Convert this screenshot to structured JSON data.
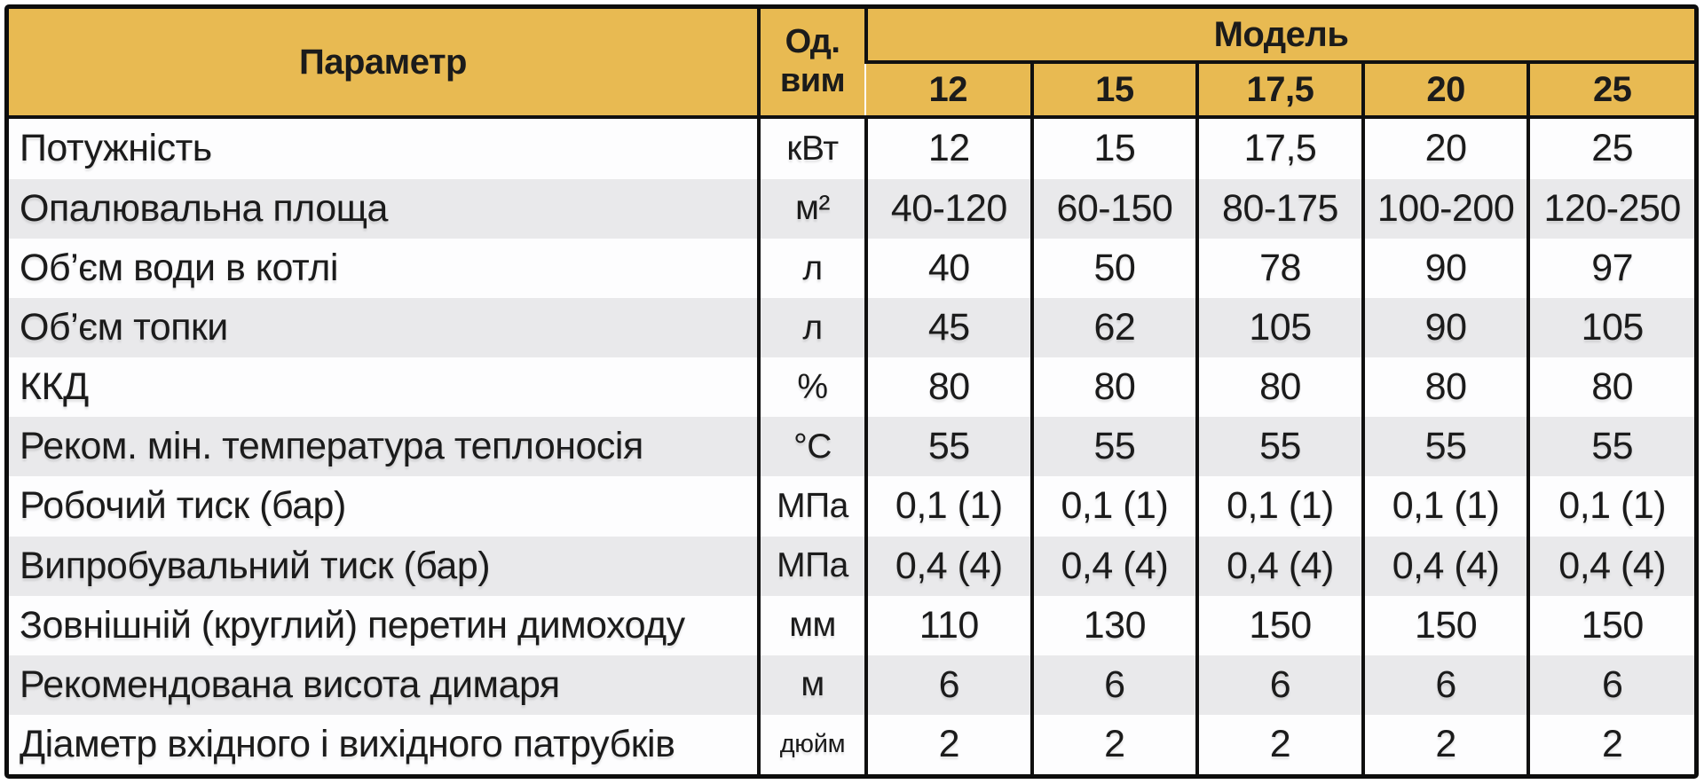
{
  "table": {
    "header": {
      "param_label": "Параметр",
      "unit_label_line1": "Од.",
      "unit_label_line2": "вим",
      "model_label": "Модель",
      "models": [
        "12",
        "15",
        "17,5",
        "20",
        "25"
      ]
    },
    "rows": [
      {
        "param": "Потужність",
        "unit": "кВт",
        "values": [
          "12",
          "15",
          "17,5",
          "20",
          "25"
        ]
      },
      {
        "param": "Опалювальна площа",
        "unit": "м²",
        "values": [
          "40-120",
          "60-150",
          "80-175",
          "100-200",
          "120-250"
        ]
      },
      {
        "param": "Об’єм води в котлі",
        "unit": "л",
        "values": [
          "40",
          "50",
          "78",
          "90",
          "97"
        ]
      },
      {
        "param": "Об’єм топки",
        "unit": "л",
        "values": [
          "45",
          "62",
          "105",
          "90",
          "105"
        ]
      },
      {
        "param": "ККД",
        "unit": "%",
        "values": [
          "80",
          "80",
          "80",
          "80",
          "80"
        ]
      },
      {
        "param": "Реком. мін. температура теплоносія",
        "unit": "°С",
        "values": [
          "55",
          "55",
          "55",
          "55",
          "55"
        ]
      },
      {
        "param": "Робочий тиск (бар)",
        "unit": "МПа",
        "values": [
          "0,1 (1)",
          "0,1 (1)",
          "0,1 (1)",
          "0,1 (1)",
          "0,1 (1)"
        ]
      },
      {
        "param": "Випробувальний тиск (бар)",
        "unit": "МПа",
        "values": [
          "0,4 (4)",
          "0,4 (4)",
          "0,4 (4)",
          "0,4 (4)",
          "0,4 (4)"
        ]
      },
      {
        "param": "Зовнішній (круглий) перетин димоходу",
        "unit": "мм",
        "values": [
          "110",
          "130",
          "150",
          "150",
          "150"
        ]
      },
      {
        "param": "Рекомендована висота димаря",
        "unit": "м",
        "values": [
          "6",
          "6",
          "6",
          "6",
          "6"
        ]
      },
      {
        "param": "Діаметр вхідного і вихідного патрубків",
        "unit": "дюйм",
        "values": [
          "2",
          "2",
          "2",
          "2",
          "2"
        ]
      }
    ],
    "colors": {
      "header_bg": "#e8ba52",
      "row_bg": "#fdfdfe",
      "row_alt_bg": "#e9e9eb",
      "border": "#101010",
      "text": "#1b1b1b"
    }
  }
}
